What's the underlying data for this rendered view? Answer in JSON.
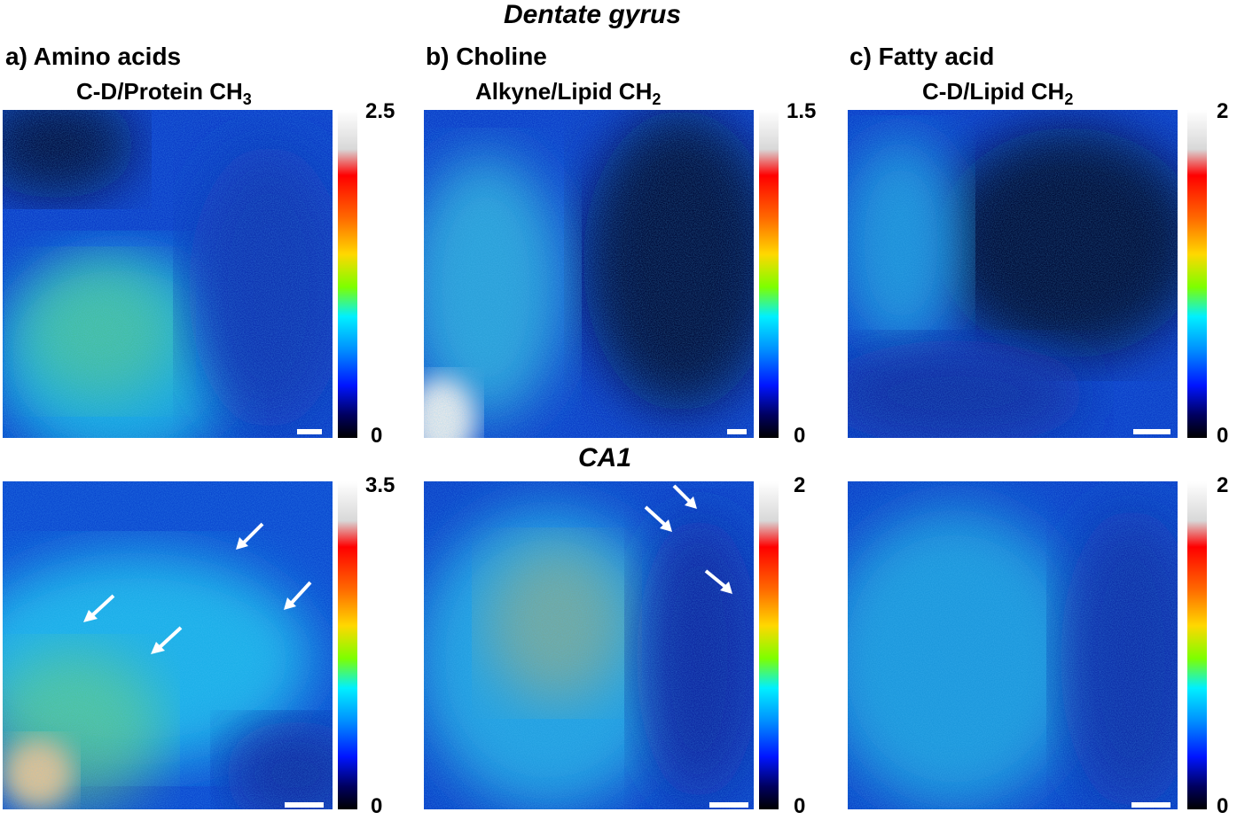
{
  "figure": {
    "title_top": "Dentate gyrus",
    "title_middle": "CA1"
  },
  "columns": [
    {
      "label": "a) Amino acids",
      "subtitle_main": "C-D/Protein CH",
      "subtitle_sub": "3",
      "top_cbar_max": "2.5",
      "top_cbar_min": "0",
      "bottom_cbar_max": "3.5",
      "bottom_cbar_min": "0"
    },
    {
      "label": "b) Choline",
      "subtitle_main": "Alkyne/Lipid CH",
      "subtitle_sub": "2",
      "top_cbar_max": "1.5",
      "top_cbar_min": "0",
      "bottom_cbar_max": "2",
      "bottom_cbar_min": "0"
    },
    {
      "label": "c) Fatty acid",
      "subtitle_main": "C-D/Lipid CH",
      "subtitle_sub": "2",
      "top_cbar_max": "2",
      "top_cbar_min": "0",
      "bottom_cbar_max": "2",
      "bottom_cbar_min": "0"
    }
  ],
  "colors": {
    "colormap": [
      "#ffffff",
      "#ff0000",
      "#ff6a00",
      "#ffd800",
      "#7dff00",
      "#00f0ff",
      "#0090ff",
      "#0015ff",
      "#000000"
    ],
    "background_tissue": "#0a3cc8",
    "arrows": "#ffffff"
  }
}
